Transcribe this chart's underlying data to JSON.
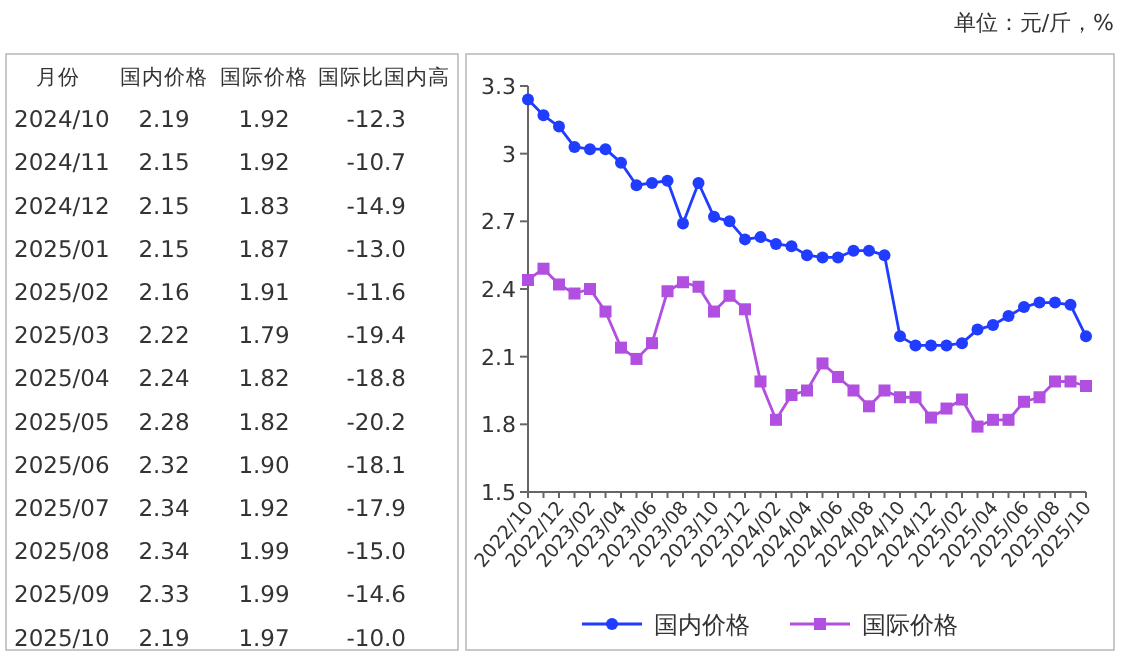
{
  "chart_data": [
    {
      "type": "other",
      "xlabel": "月份",
      "categories": [
        "2024/10",
        "2024/11",
        "2024/12",
        "2025/01",
        "2025/02",
        "2025/03",
        "2025/04",
        "2025/05",
        "2025/06",
        "2025/07",
        "2025/08",
        "2025/09",
        "2025/10"
      ],
      "series": [
        {
          "name": "国内价格",
          "values": [
            2.19,
            2.15,
            2.15,
            2.15,
            2.16,
            2.22,
            2.24,
            2.28,
            2.32,
            2.34,
            2.34,
            2.33,
            2.19
          ],
          "value_labels": [
            "2.19",
            "2.15",
            "2.15",
            "2.15",
            "2.16",
            "2.22",
            "2.24",
            "2.28",
            "2.32",
            "2.34",
            "2.34",
            "2.33",
            "2.19"
          ]
        },
        {
          "name": "国际价格",
          "values": [
            1.92,
            1.92,
            1.83,
            1.87,
            1.91,
            1.79,
            1.82,
            1.82,
            1.9,
            1.92,
            1.99,
            1.99,
            1.97
          ],
          "value_labels": [
            "1.92",
            "1.92",
            "1.83",
            "1.87",
            "1.91",
            "1.79",
            "1.82",
            "1.82",
            "1.90",
            "1.92",
            "1.99",
            "1.99",
            "1.97"
          ]
        },
        {
          "name": "国际比国内高",
          "values": [
            -12.3,
            -10.7,
            -14.9,
            -13.0,
            -11.6,
            -19.4,
            -18.8,
            -20.2,
            -18.1,
            -17.9,
            -15.0,
            -14.6,
            -10.0
          ],
          "value_labels": [
            "-12.3",
            "-10.7",
            "-14.9",
            "-13.0",
            "-11.6",
            "-19.4",
            "-18.8",
            "-20.2",
            "-18.1",
            "-17.9",
            "-15.0",
            "-14.6",
            "-10.0"
          ]
        }
      ]
    },
    {
      "type": "line",
      "annotations": [
        "单位：元/斤，%"
      ],
      "categories": [
        "2022/10",
        null,
        "2022/12",
        null,
        "2023/02",
        null,
        "2023/04",
        null,
        "2023/06",
        null,
        "2023/08",
        null,
        "2023/10",
        null,
        "2023/12",
        null,
        "2024/02",
        null,
        "2024/04",
        null,
        "2024/06",
        null,
        "2024/08",
        null,
        "2024/10",
        null,
        "2024/12",
        null,
        "2025/02",
        null,
        "2025/04",
        null,
        "2025/06",
        null,
        "2025/08",
        null,
        "2025/10"
      ],
      "ylim": [
        1.5,
        3.3
      ],
      "yticks": [
        1.5,
        1.8,
        2.1,
        2.4,
        2.7,
        3,
        3.3
      ],
      "legend": "bottom",
      "line_style": "solid",
      "series": [
        {
          "name": "国内价格",
          "color": "#1f3cff",
          "marker": "circle",
          "values": [
            3.24,
            3.17,
            3.12,
            3.03,
            3.02,
            3.02,
            2.96,
            2.86,
            2.87,
            2.88,
            2.69,
            2.87,
            2.72,
            2.7,
            2.62,
            2.63,
            2.6,
            2.59,
            2.55,
            2.54,
            2.54,
            2.57,
            2.57,
            2.55,
            2.19,
            2.15,
            2.15,
            2.15,
            2.16,
            2.22,
            2.24,
            2.28,
            2.32,
            2.34,
            2.34,
            2.33,
            2.19
          ]
        },
        {
          "name": "国际价格",
          "color": "#b04fe0",
          "marker": "square",
          "values": [
            2.44,
            2.49,
            2.42,
            2.38,
            2.4,
            2.3,
            2.14,
            2.09,
            2.16,
            2.39,
            2.43,
            2.41,
            2.3,
            2.37,
            2.31,
            1.99,
            1.82,
            1.93,
            1.95,
            2.07,
            2.01,
            1.95,
            1.88,
            1.95,
            1.92,
            1.92,
            1.83,
            1.87,
            1.91,
            1.79,
            1.82,
            1.82,
            1.9,
            1.92,
            1.99,
            1.99,
            1.97
          ]
        }
      ]
    }
  ]
}
